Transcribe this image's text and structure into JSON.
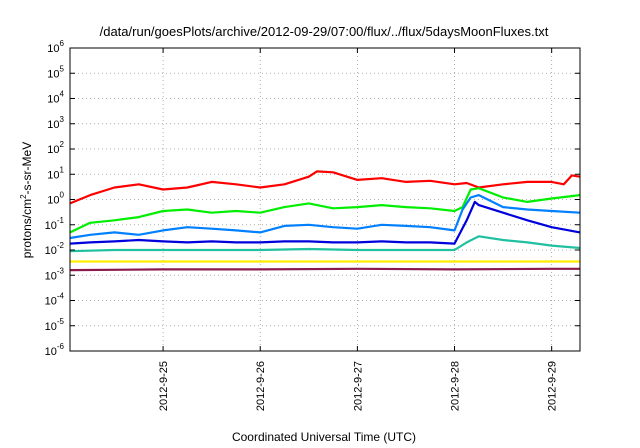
{
  "chart_data": {
    "type": "line",
    "title": "/data/run/goesPlots/archive/2012-09-29/07:00/flux/../flux/5daysMoonFluxes.txt",
    "xlabel": "Coordinated Universal Time (UTC)",
    "ylabel": {
      "prefix": "protons/cm",
      "sup": "2",
      "suffix": "-s-sr-MeV"
    },
    "y_scale": "log",
    "ylim": [
      1e-06,
      1000000.0
    ],
    "y_ticks": [
      {
        "base": "10",
        "exp": "-6"
      },
      {
        "base": "10",
        "exp": "-5"
      },
      {
        "base": "10",
        "exp": "-4"
      },
      {
        "base": "10",
        "exp": "-3"
      },
      {
        "base": "10",
        "exp": "-2"
      },
      {
        "base": "10",
        "exp": "-1"
      },
      {
        "base": "10",
        "exp": "0"
      },
      {
        "base": "10",
        "exp": "1"
      },
      {
        "base": "10",
        "exp": "2"
      },
      {
        "base": "10",
        "exp": "3"
      },
      {
        "base": "10",
        "exp": "4"
      },
      {
        "base": "10",
        "exp": "5"
      },
      {
        "base": "10",
        "exp": "6"
      }
    ],
    "xlim": [
      "2012-09-24T01:00",
      "2012-09-29T07:00"
    ],
    "x_ticks": [
      "2012-9-25",
      "2012-9-26",
      "2012-9-27",
      "2012-9-28",
      "2012-9-29"
    ],
    "grid": true,
    "series": [
      {
        "color": "#ff0000",
        "x": [
          "2012-09-24T01:00",
          "2012-09-24T06:00",
          "2012-09-24T12:00",
          "2012-09-24T18:00",
          "2012-09-25T00:00",
          "2012-09-25T06:00",
          "2012-09-25T12:00",
          "2012-09-25T18:00",
          "2012-09-26T00:00",
          "2012-09-26T06:00",
          "2012-09-26T12:00",
          "2012-09-26T14:00",
          "2012-09-26T18:00",
          "2012-09-27T00:00",
          "2012-09-27T06:00",
          "2012-09-27T12:00",
          "2012-09-27T18:00",
          "2012-09-28T00:00",
          "2012-09-28T03:00",
          "2012-09-28T06:00",
          "2012-09-28T12:00",
          "2012-09-28T18:00",
          "2012-09-29T00:00",
          "2012-09-29T03:00",
          "2012-09-29T05:00",
          "2012-09-29T07:00"
        ],
        "y": [
          0.7,
          1.5,
          3,
          4,
          2.5,
          3,
          5,
          4,
          3,
          4,
          8,
          13,
          12,
          6,
          7,
          5,
          5.5,
          4,
          4.5,
          3,
          4,
          5,
          5,
          4,
          9,
          8
        ]
      },
      {
        "color": "#00ee00",
        "x": [
          "2012-09-24T01:00",
          "2012-09-24T06:00",
          "2012-09-24T12:00",
          "2012-09-24T18:00",
          "2012-09-25T00:00",
          "2012-09-25T06:00",
          "2012-09-25T12:00",
          "2012-09-25T18:00",
          "2012-09-26T00:00",
          "2012-09-26T06:00",
          "2012-09-26T12:00",
          "2012-09-26T18:00",
          "2012-09-27T00:00",
          "2012-09-27T06:00",
          "2012-09-27T12:00",
          "2012-09-27T18:00",
          "2012-09-28T00:00",
          "2012-09-28T02:00",
          "2012-09-28T04:00",
          "2012-09-28T06:00",
          "2012-09-28T12:00",
          "2012-09-28T18:00",
          "2012-09-29T00:00",
          "2012-09-29T07:00"
        ],
        "y": [
          0.05,
          0.12,
          0.15,
          0.2,
          0.35,
          0.4,
          0.3,
          0.35,
          0.3,
          0.5,
          0.7,
          0.45,
          0.5,
          0.6,
          0.5,
          0.45,
          0.35,
          0.5,
          2.5,
          2.8,
          1.2,
          0.8,
          1.1,
          1.5
        ]
      },
      {
        "color": "#0080ff",
        "x": [
          "2012-09-24T01:00",
          "2012-09-24T06:00",
          "2012-09-24T12:00",
          "2012-09-24T18:00",
          "2012-09-25T00:00",
          "2012-09-25T06:00",
          "2012-09-25T12:00",
          "2012-09-25T18:00",
          "2012-09-26T00:00",
          "2012-09-26T06:00",
          "2012-09-26T12:00",
          "2012-09-26T18:00",
          "2012-09-27T00:00",
          "2012-09-27T06:00",
          "2012-09-27T12:00",
          "2012-09-27T18:00",
          "2012-09-28T00:00",
          "2012-09-28T02:00",
          "2012-09-28T04:00",
          "2012-09-28T06:00",
          "2012-09-28T12:00",
          "2012-09-28T18:00",
          "2012-09-29T00:00",
          "2012-09-29T07:00"
        ],
        "y": [
          0.03,
          0.04,
          0.05,
          0.04,
          0.06,
          0.08,
          0.07,
          0.06,
          0.05,
          0.09,
          0.1,
          0.08,
          0.07,
          0.1,
          0.09,
          0.08,
          0.06,
          0.4,
          1.2,
          1.5,
          0.5,
          0.4,
          0.35,
          0.3
        ]
      },
      {
        "color": "#0000dd",
        "x": [
          "2012-09-24T01:00",
          "2012-09-24T06:00",
          "2012-09-24T12:00",
          "2012-09-24T18:00",
          "2012-09-25T00:00",
          "2012-09-25T06:00",
          "2012-09-25T12:00",
          "2012-09-25T18:00",
          "2012-09-26T00:00",
          "2012-09-26T06:00",
          "2012-09-26T12:00",
          "2012-09-26T18:00",
          "2012-09-27T00:00",
          "2012-09-27T06:00",
          "2012-09-27T12:00",
          "2012-09-27T18:00",
          "2012-09-28T00:00",
          "2012-09-28T03:00",
          "2012-09-28T05:00",
          "2012-09-28T06:00",
          "2012-09-28T12:00",
          "2012-09-28T18:00",
          "2012-09-29T00:00",
          "2012-09-29T07:00"
        ],
        "y": [
          0.018,
          0.02,
          0.022,
          0.025,
          0.022,
          0.02,
          0.022,
          0.02,
          0.02,
          0.022,
          0.022,
          0.02,
          0.02,
          0.022,
          0.02,
          0.02,
          0.018,
          0.15,
          0.8,
          0.6,
          0.3,
          0.15,
          0.08,
          0.05
        ]
      },
      {
        "color": "#20c0a0",
        "x": [
          "2012-09-24T01:00",
          "2012-09-24T12:00",
          "2012-09-25T00:00",
          "2012-09-25T12:00",
          "2012-09-26T00:00",
          "2012-09-26T12:00",
          "2012-09-27T00:00",
          "2012-09-27T12:00",
          "2012-09-28T00:00",
          "2012-09-28T03:00",
          "2012-09-28T06:00",
          "2012-09-28T12:00",
          "2012-09-28T18:00",
          "2012-09-29T00:00",
          "2012-09-29T07:00"
        ],
        "y": [
          0.009,
          0.01,
          0.01,
          0.01,
          0.01,
          0.011,
          0.01,
          0.01,
          0.01,
          0.02,
          0.035,
          0.025,
          0.02,
          0.015,
          0.012
        ]
      },
      {
        "color": "#ffee00",
        "x": [
          "2012-09-24T01:00",
          "2012-09-25T00:00",
          "2012-09-26T00:00",
          "2012-09-27T00:00",
          "2012-09-28T00:00",
          "2012-09-29T00:00",
          "2012-09-29T07:00"
        ],
        "y": [
          0.0035,
          0.0035,
          0.0035,
          0.0035,
          0.0035,
          0.0035,
          0.0035
        ]
      },
      {
        "color": "#8b1a4a",
        "x": [
          "2012-09-24T01:00",
          "2012-09-25T00:00",
          "2012-09-26T00:00",
          "2012-09-27T00:00",
          "2012-09-28T00:00",
          "2012-09-29T00:00",
          "2012-09-29T07:00"
        ],
        "y": [
          0.0016,
          0.0017,
          0.0017,
          0.0018,
          0.0017,
          0.0018,
          0.0018
        ]
      }
    ]
  }
}
